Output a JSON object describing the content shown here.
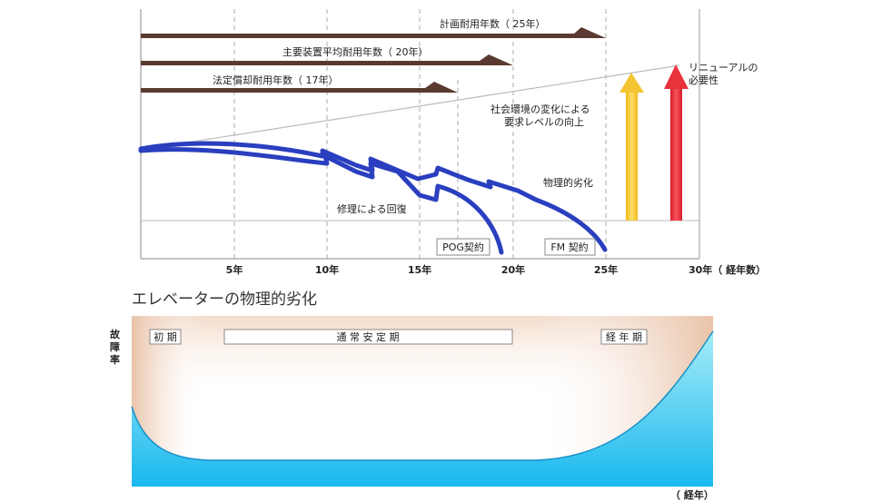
{
  "top_chart": {
    "x_ticks": [
      "5年",
      "10年",
      "15年",
      "20年",
      "25年",
      "30年（ 経年数）"
    ],
    "lifespan_bars": [
      {
        "label": "計画耐用年数（ 25年）",
        "years": 25
      },
      {
        "label": "主要装置平均耐用年数（ 20年）",
        "years": 20
      },
      {
        "label": "法定償却耐用年数（ 17年）",
        "years": 17
      }
    ],
    "annotations": {
      "social_change_line1": "社会環境の変化による",
      "social_change_line2": "要求レベルの向上",
      "renewal_line1": "リニューアルの",
      "renewal_line2": "必要性",
      "physical_deterioration": "物理的劣化",
      "repair_recovery": "修理による回復",
      "pog_contract": "POG契約",
      "fm_contract": "FM 契約"
    },
    "colors": {
      "bar": "#5a3a30",
      "curve": "#2a3fbf",
      "arrow_yellow": "#f5c431",
      "arrow_red": "#e8323c"
    }
  },
  "bottom_chart": {
    "title": "エレベーターの物理的劣化",
    "y_label": [
      "故",
      "障",
      "率"
    ],
    "x_label": "（ 経年）",
    "phases": {
      "early": "初 期",
      "stable": "通 常 安 定 期",
      "aging": "経 年 期"
    },
    "colors": {
      "water_top": "#a6ecf8",
      "water_bottom": "#1ab8ee",
      "band": "#eccbb4"
    }
  }
}
